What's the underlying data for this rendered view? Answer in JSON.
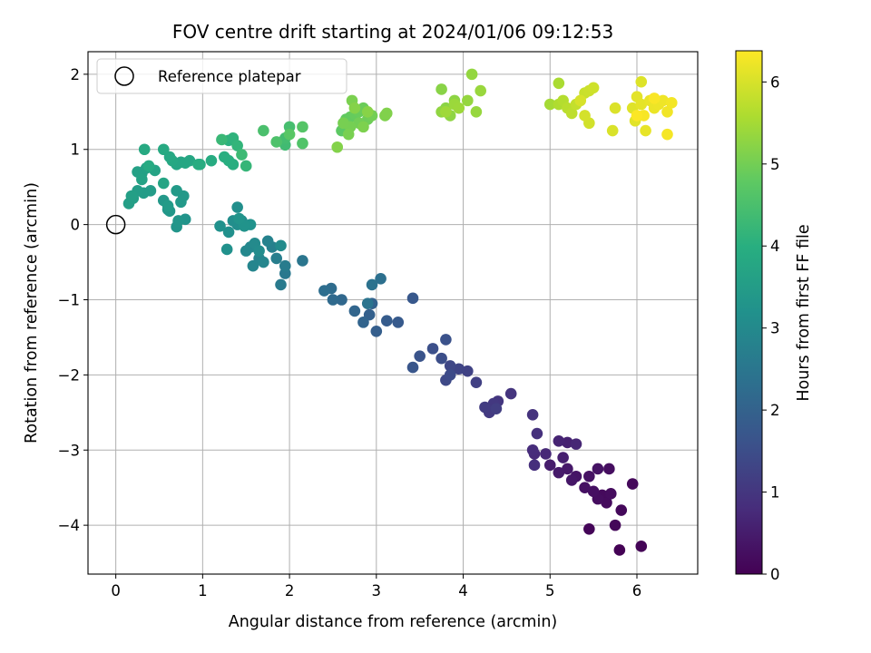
{
  "chart_data": {
    "type": "scatter",
    "title": "FOV centre drift starting at 2024/01/06 09:12:53",
    "xlabel": "Angular distance from reference (arcmin)",
    "ylabel": "Rotation from reference (arcmin)",
    "xlim": [
      -0.32,
      6.7
    ],
    "ylim": [
      -4.65,
      2.3
    ],
    "xticks": [
      0,
      1,
      2,
      3,
      4,
      5,
      6
    ],
    "yticks": [
      -4,
      -3,
      -2,
      -1,
      0,
      1,
      2
    ],
    "xtick_labels": [
      "0",
      "1",
      "2",
      "3",
      "4",
      "5",
      "6"
    ],
    "ytick_labels": [
      "−4",
      "−3",
      "−2",
      "−1",
      "0",
      "1",
      "2"
    ],
    "grid": true,
    "legend": {
      "position": "top-left",
      "entries": [
        "Reference platepar"
      ]
    },
    "reference_point": {
      "x": 0,
      "y": 0
    },
    "colorbar": {
      "label": "Hours from first FF file",
      "range": [
        0,
        6.38
      ],
      "ticks": [
        0,
        1,
        2,
        3,
        4,
        5,
        6
      ],
      "tick_labels": [
        "0",
        "1",
        "2",
        "3",
        "4",
        "5",
        "6"
      ],
      "colormap": "viridis"
    },
    "points": [
      [
        5.8,
        -4.33,
        0.02
      ],
      [
        6.05,
        -4.28,
        0.05
      ],
      [
        5.45,
        -4.05,
        0.08
      ],
      [
        5.75,
        -4.0,
        0.1
      ],
      [
        5.82,
        -3.8,
        0.12
      ],
      [
        5.95,
        -3.45,
        0.14
      ],
      [
        5.6,
        -3.6,
        0.16
      ],
      [
        5.65,
        -3.7,
        0.18
      ],
      [
        5.7,
        -3.58,
        0.2
      ],
      [
        5.55,
        -3.65,
        0.22
      ],
      [
        5.68,
        -3.25,
        0.24
      ],
      [
        5.5,
        -3.55,
        0.26
      ],
      [
        5.4,
        -3.5,
        0.28
      ],
      [
        5.45,
        -3.35,
        0.3
      ],
      [
        5.55,
        -3.25,
        0.32
      ],
      [
        5.3,
        -3.35,
        0.35
      ],
      [
        5.25,
        -3.4,
        0.38
      ],
      [
        5.2,
        -3.25,
        0.42
      ],
      [
        5.1,
        -3.3,
        0.46
      ],
      [
        5.0,
        -3.2,
        0.5
      ],
      [
        5.15,
        -3.1,
        0.55
      ],
      [
        5.2,
        -2.9,
        0.6
      ],
      [
        5.1,
        -2.88,
        0.64
      ],
      [
        5.3,
        -2.92,
        0.68
      ],
      [
        4.95,
        -3.05,
        0.72
      ],
      [
        4.82,
        -3.05,
        0.76
      ],
      [
        4.8,
        -3.0,
        0.8
      ],
      [
        4.82,
        -3.2,
        0.84
      ],
      [
        4.85,
        -2.78,
        0.88
      ],
      [
        4.8,
        -2.53,
        0.92
      ],
      [
        4.55,
        -2.25,
        0.96
      ],
      [
        4.4,
        -2.35,
        1.0
      ],
      [
        4.35,
        -2.38,
        1.04
      ],
      [
        4.3,
        -2.5,
        1.08
      ],
      [
        4.25,
        -2.43,
        1.12
      ],
      [
        4.38,
        -2.45,
        1.16
      ],
      [
        4.15,
        -2.1,
        1.2
      ],
      [
        4.05,
        -1.95,
        1.25
      ],
      [
        3.95,
        -1.92,
        1.3
      ],
      [
        3.85,
        -1.88,
        1.35
      ],
      [
        3.8,
        -2.07,
        1.4
      ],
      [
        3.85,
        -2.0,
        1.45
      ],
      [
        3.75,
        -1.78,
        1.5
      ],
      [
        3.65,
        -1.65,
        1.55
      ],
      [
        3.8,
        -1.53,
        1.6
      ],
      [
        3.5,
        -1.75,
        1.65
      ],
      [
        3.42,
        -1.9,
        1.7
      ],
      [
        3.42,
        -0.98,
        1.75
      ],
      [
        3.25,
        -1.3,
        1.8
      ],
      [
        3.12,
        -1.28,
        1.85
      ],
      [
        3.0,
        -1.42,
        1.9
      ],
      [
        2.92,
        -1.2,
        1.95
      ],
      [
        2.95,
        -1.05,
        2.0
      ],
      [
        2.85,
        -1.3,
        2.05
      ],
      [
        2.75,
        -1.15,
        2.1
      ],
      [
        2.6,
        -1.0,
        2.15
      ],
      [
        2.5,
        -1.0,
        2.2
      ],
      [
        2.48,
        -0.85,
        2.25
      ],
      [
        2.4,
        -0.88,
        2.3
      ],
      [
        3.05,
        -0.72,
        2.35
      ],
      [
        2.95,
        -0.8,
        2.4
      ],
      [
        2.9,
        -1.05,
        2.45
      ],
      [
        2.15,
        -0.48,
        2.5
      ],
      [
        1.95,
        -0.65,
        2.55
      ],
      [
        1.9,
        -0.8,
        2.6
      ],
      [
        1.95,
        -0.55,
        2.65
      ],
      [
        1.85,
        -0.45,
        2.7
      ],
      [
        1.8,
        -0.3,
        2.75
      ],
      [
        1.75,
        -0.22,
        2.8
      ],
      [
        1.65,
        -0.45,
        2.85
      ],
      [
        1.58,
        -0.55,
        2.88
      ],
      [
        1.7,
        -0.5,
        2.91
      ],
      [
        1.55,
        -0.3,
        2.94
      ],
      [
        1.5,
        -0.35,
        2.97
      ],
      [
        1.6,
        -0.25,
        3.0
      ],
      [
        1.9,
        -0.28,
        3.03
      ],
      [
        1.65,
        -0.35,
        3.06
      ],
      [
        1.45,
        0.05,
        3.08
      ],
      [
        1.4,
        0.0,
        3.1
      ],
      [
        1.35,
        0.05,
        3.12
      ],
      [
        1.4,
        0.23,
        3.14
      ],
      [
        1.3,
        -0.1,
        3.16
      ],
      [
        1.2,
        -0.02,
        3.18
      ],
      [
        1.28,
        -0.33,
        3.2
      ],
      [
        1.55,
        0.0,
        3.22
      ],
      [
        1.48,
        -0.02,
        3.24
      ],
      [
        1.42,
        0.08,
        3.26
      ],
      [
        0.8,
        0.07,
        3.28
      ],
      [
        0.7,
        -0.03,
        3.3
      ],
      [
        0.72,
        0.05,
        3.32
      ],
      [
        0.6,
        0.2,
        3.34
      ],
      [
        0.62,
        0.18,
        3.36
      ],
      [
        0.55,
        0.32,
        3.38
      ],
      [
        0.75,
        0.3,
        3.4
      ],
      [
        0.78,
        0.38,
        3.42
      ],
      [
        0.7,
        0.45,
        3.44
      ],
      [
        0.6,
        0.25,
        3.46
      ],
      [
        0.4,
        0.45,
        3.48
      ],
      [
        0.32,
        0.42,
        3.5
      ],
      [
        0.25,
        0.45,
        3.52
      ],
      [
        0.2,
        0.35,
        3.54
      ],
      [
        0.15,
        0.28,
        3.56
      ],
      [
        0.18,
        0.38,
        3.58
      ],
      [
        0.3,
        0.68,
        3.6
      ],
      [
        0.25,
        0.7,
        3.62
      ],
      [
        0.35,
        0.75,
        3.64
      ],
      [
        0.3,
        0.6,
        3.66
      ],
      [
        0.45,
        0.72,
        3.68
      ],
      [
        0.55,
        0.55,
        3.7
      ],
      [
        0.75,
        0.83,
        3.72
      ],
      [
        0.7,
        0.8,
        3.74
      ],
      [
        0.85,
        0.85,
        3.76
      ],
      [
        0.8,
        0.82,
        3.78
      ],
      [
        0.65,
        0.85,
        3.8
      ],
      [
        0.62,
        0.9,
        3.82
      ],
      [
        0.55,
        1.0,
        3.84
      ],
      [
        0.33,
        1.0,
        3.86
      ],
      [
        0.38,
        0.78,
        3.88
      ],
      [
        1.1,
        0.85,
        3.9
      ],
      [
        0.97,
        0.8,
        3.92
      ],
      [
        0.95,
        0.8,
        3.94
      ],
      [
        1.35,
        0.8,
        3.96
      ],
      [
        1.3,
        0.85,
        3.98
      ],
      [
        1.25,
        0.9,
        4.0
      ],
      [
        1.3,
        1.12,
        4.05
      ],
      [
        1.35,
        1.15,
        4.1
      ],
      [
        1.4,
        1.05,
        4.15
      ],
      [
        1.5,
        0.78,
        4.2
      ],
      [
        1.22,
        1.13,
        4.25
      ],
      [
        1.45,
        0.93,
        4.3
      ],
      [
        1.95,
        1.06,
        4.35
      ],
      [
        1.95,
        1.15,
        4.4
      ],
      [
        2.0,
        1.3,
        4.45
      ],
      [
        1.7,
        1.25,
        4.5
      ],
      [
        1.85,
        1.1,
        4.55
      ],
      [
        2.15,
        1.08,
        4.6
      ],
      [
        2.15,
        1.3,
        4.65
      ],
      [
        2.0,
        1.2,
        4.7
      ],
      [
        2.6,
        1.25,
        4.75
      ],
      [
        2.65,
        1.4,
        4.8
      ],
      [
        2.7,
        1.43,
        4.83
      ],
      [
        2.75,
        1.47,
        4.86
      ],
      [
        2.8,
        1.5,
        4.89
      ],
      [
        2.85,
        1.55,
        4.92
      ],
      [
        2.9,
        1.4,
        4.95
      ],
      [
        2.8,
        1.35,
        4.98
      ],
      [
        2.95,
        1.45,
        5.0
      ],
      [
        2.7,
        1.3,
        5.02
      ],
      [
        2.62,
        1.35,
        5.04
      ],
      [
        2.68,
        1.2,
        5.06
      ],
      [
        2.72,
        1.65,
        5.08
      ],
      [
        2.85,
        1.3,
        5.1
      ],
      [
        3.1,
        1.45,
        5.12
      ],
      [
        3.12,
        1.48,
        5.14
      ],
      [
        2.55,
        1.03,
        5.16
      ],
      [
        2.75,
        1.55,
        5.18
      ],
      [
        2.9,
        1.5,
        5.2
      ],
      [
        3.75,
        1.8,
        5.22
      ],
      [
        3.8,
        1.55,
        5.24
      ],
      [
        3.9,
        1.65,
        5.26
      ],
      [
        3.85,
        1.45,
        5.28
      ],
      [
        3.75,
        1.5,
        5.3
      ],
      [
        4.1,
        2.0,
        5.32
      ],
      [
        4.05,
        1.65,
        5.34
      ],
      [
        4.15,
        1.5,
        5.36
      ],
      [
        4.2,
        1.78,
        5.38
      ],
      [
        3.9,
        1.6,
        5.4
      ],
      [
        3.95,
        1.55,
        5.42
      ],
      [
        3.8,
        1.5,
        5.44
      ],
      [
        5.0,
        1.6,
        5.5
      ],
      [
        5.1,
        1.88,
        5.55
      ],
      [
        5.1,
        1.6,
        5.6
      ],
      [
        5.15,
        1.65,
        5.65
      ],
      [
        5.2,
        1.55,
        5.7
      ],
      [
        5.25,
        1.48,
        5.75
      ],
      [
        5.3,
        1.6,
        5.8
      ],
      [
        5.4,
        1.75,
        5.85
      ],
      [
        5.45,
        1.78,
        5.88
      ],
      [
        5.5,
        1.82,
        5.91
      ],
      [
        5.45,
        1.35,
        5.94
      ],
      [
        5.4,
        1.45,
        5.97
      ],
      [
        5.35,
        1.65,
        6.0
      ],
      [
        5.72,
        1.25,
        6.02
      ],
      [
        5.75,
        1.55,
        6.04
      ],
      [
        6.05,
        1.9,
        6.06
      ],
      [
        5.95,
        1.55,
        6.08
      ],
      [
        5.98,
        1.38,
        6.1
      ],
      [
        6.0,
        1.7,
        6.12
      ],
      [
        6.05,
        1.6,
        6.14
      ],
      [
        6.1,
        1.25,
        6.16
      ],
      [
        6.15,
        1.65,
        6.18
      ],
      [
        6.2,
        1.55,
        6.2
      ],
      [
        6.25,
        1.6,
        6.22
      ],
      [
        6.3,
        1.65,
        6.24
      ],
      [
        6.35,
        1.5,
        6.26
      ],
      [
        6.4,
        1.62,
        6.28
      ],
      [
        6.35,
        1.2,
        6.3
      ],
      [
        6.08,
        1.45,
        6.32
      ],
      [
        6.2,
        1.68,
        6.34
      ],
      [
        6.0,
        1.45,
        6.36
      ]
    ]
  }
}
